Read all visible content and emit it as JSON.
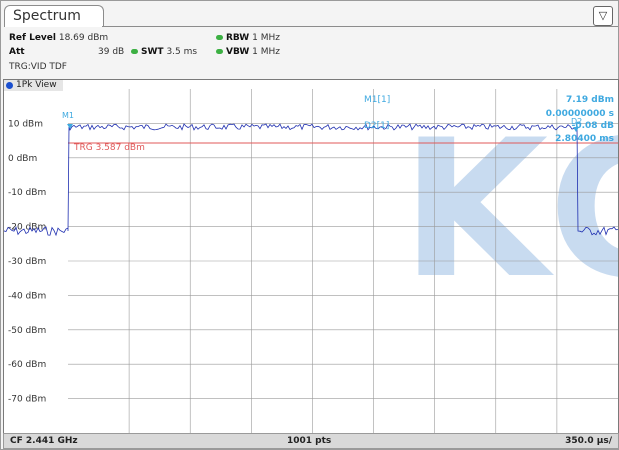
{
  "tab": {
    "title": "Spectrum"
  },
  "header": {
    "ref_level_label": "Ref Level",
    "ref_level_value": "18.69 dBm",
    "att_label": "Att",
    "att_value": "39 dB",
    "swt_label": "SWT",
    "swt_value": "3.5 ms",
    "rbw_label": "RBW",
    "rbw_value": "1 MHz",
    "vbw_label": "VBW",
    "vbw_value": "1 MHz",
    "trigger": "TRG:VID TDF"
  },
  "view": {
    "title": "1Pk View"
  },
  "axis": {
    "y_labels": [
      "10 dBm",
      "0 dBm",
      "-10 dBm",
      "-20 dBm",
      "-30 dBm",
      "-40 dBm",
      "-50 dBm",
      "-60 dBm",
      "-70 dBm"
    ]
  },
  "trigger_line": {
    "label": "TRG  3.587 dBm",
    "color": "#e05a5a"
  },
  "markers": {
    "m1_label": "M1[1]",
    "m1_value": "7.19 dBm",
    "m1_time": "0.00000000 s",
    "d2_label": "D2[1]",
    "d2_value": "-0.08 dB",
    "d2_time": "2.80400 ms",
    "m1_tag": "M1",
    "d2_tag": "D2",
    "color": "#3fa9e0"
  },
  "watermark": "KG",
  "footer": {
    "cf": "CF 2.441 GHz",
    "pts": "1001 pts",
    "span": "350.0 µs/"
  },
  "colors": {
    "trace": "#1f2fb0",
    "grid": "#9a9a9a"
  }
}
